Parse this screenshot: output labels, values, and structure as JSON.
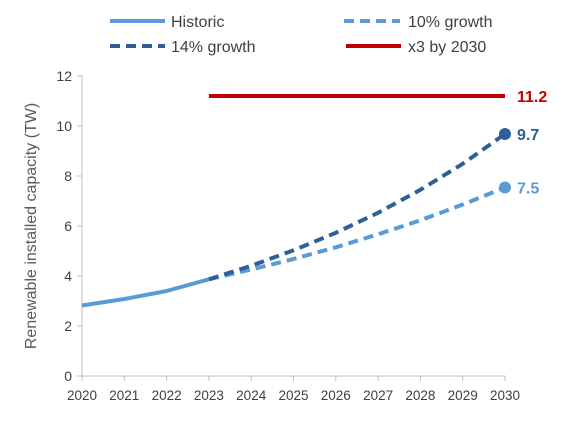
{
  "chart_data": {
    "type": "line",
    "title": "",
    "xlabel": "",
    "ylabel": "Renewable installed capacity (TW)",
    "x_ticks": [
      "2020",
      "2021",
      "2022",
      "2023",
      "2024",
      "2025",
      "2026",
      "2027",
      "2028",
      "2029",
      "2030"
    ],
    "y_ticks": [
      "0",
      "2",
      "4",
      "6",
      "8",
      "10",
      "12"
    ],
    "xlim": [
      2020,
      2030
    ],
    "ylim": [
      0,
      12
    ],
    "grid": false,
    "legend_position": "top",
    "series": [
      {
        "name": "Historic",
        "color": "#5b9bd5",
        "style": "solid",
        "x": [
          2020,
          2021,
          2022,
          2023
        ],
        "y": [
          2.82,
          3.08,
          3.4,
          3.87
        ]
      },
      {
        "name": "10% growth",
        "color": "#5b9bd5",
        "style": "dashed",
        "x": [
          2023,
          2024,
          2025,
          2026,
          2027,
          2028,
          2029,
          2030
        ],
        "y": [
          3.87,
          4.26,
          4.68,
          5.15,
          5.67,
          6.23,
          6.86,
          7.54
        ],
        "end_label": "7.5",
        "end_marker": true
      },
      {
        "name": "14% growth",
        "color": "#2e5f99",
        "style": "dashed",
        "x": [
          2023,
          2024,
          2025,
          2026,
          2027,
          2028,
          2029,
          2030
        ],
        "y": [
          3.87,
          4.41,
          5.03,
          5.73,
          6.53,
          7.45,
          8.49,
          9.68
        ],
        "end_label": "9.7",
        "end_marker": true
      },
      {
        "name": "x3 by 2030",
        "color": "#c00000",
        "style": "solid",
        "x": [
          2023,
          2030
        ],
        "y": [
          11.2,
          11.2
        ],
        "end_label": "11.2",
        "end_marker": false
      }
    ]
  }
}
